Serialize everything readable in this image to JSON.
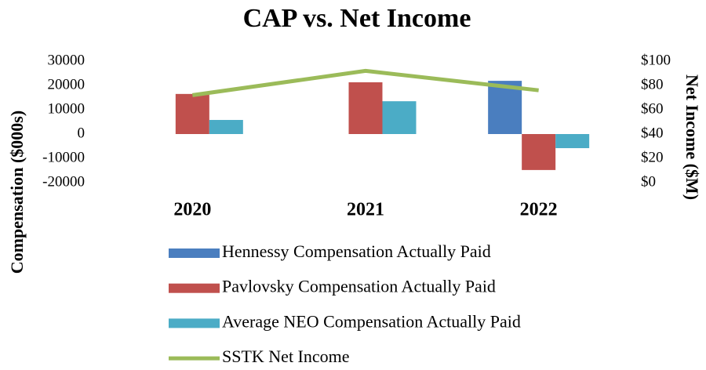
{
  "chart_data": {
    "type": "bar",
    "title": "CAP vs. Net Income",
    "ylabel": "Compensation ($000s)",
    "y2label": "Net Income ($M)",
    "categories": [
      "2020",
      "2021",
      "2022"
    ],
    "series": [
      {
        "name": "Hennessy Compensation Actually Paid",
        "color": "#4a7ebf",
        "type": "bar",
        "values": [
          null,
          null,
          21900
        ]
      },
      {
        "name": "Pavlovsky Compensation Actually Paid",
        "color": "#c0504d",
        "type": "bar",
        "values": [
          16500,
          21300,
          -14800
        ]
      },
      {
        "name": "Average NEO Compensation Actually Paid",
        "color": "#4bacc6",
        "type": "bar",
        "values": [
          5800,
          13500,
          -5800
        ]
      },
      {
        "name": "SSTK Net Income",
        "color": "#9bbb59",
        "type": "line",
        "axis": "y2",
        "values": [
          72,
          92,
          76
        ]
      }
    ],
    "ylim": [
      -20000,
      30000
    ],
    "yticks": [
      -20000,
      -10000,
      0,
      10000,
      20000,
      30000
    ],
    "y2lim": [
      0,
      100
    ],
    "y2ticks": [
      {
        "value": 0,
        "label": "$0"
      },
      {
        "value": 20,
        "label": "$20"
      },
      {
        "value": 40,
        "label": "$40"
      },
      {
        "value": 60,
        "label": "$60"
      },
      {
        "value": 80,
        "label": "$80"
      },
      {
        "value": 100,
        "label": "$100"
      }
    ],
    "grid": false
  }
}
